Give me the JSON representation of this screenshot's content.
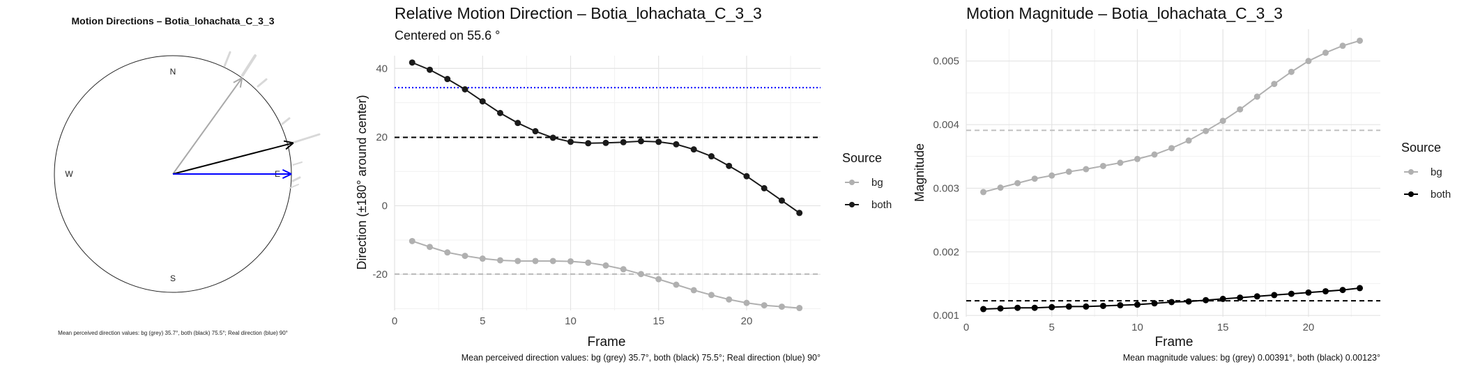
{
  "chart_data": [
    {
      "type": "polar",
      "title": "Motion Directions – Botia_lohachata_C_3_3",
      "compass": [
        "N",
        "W",
        "E",
        "S"
      ],
      "vectors": [
        {
          "name": "bg",
          "color": "#a9a9a9",
          "angle_deg": 35.7,
          "length": 1.0
        },
        {
          "name": "both",
          "color": "#000000",
          "angle_deg": 75.5,
          "length": 1.05
        },
        {
          "name": "real",
          "color": "#0000ff",
          "angle_deg": 90,
          "length": 1.0
        }
      ],
      "footnote": "Mean perceived direction values: bg (grey) 35.7°, both (black) 75.5°; Real direction (blue) 90°"
    },
    {
      "type": "line",
      "title": "Relative Motion Direction – Botia_lohachata_C_3_3",
      "subtitle": "Centered on  55.6 °",
      "xlabel": "Frame",
      "ylabel": "Direction (±180° around center)",
      "xlim": [
        0,
        24.2
      ],
      "ylim": [
        -30.5,
        43.7
      ],
      "xticks": [
        0,
        5,
        10,
        15,
        20
      ],
      "yticks": [
        -20,
        0,
        20,
        40
      ],
      "grid": true,
      "legend": {
        "title": "Source",
        "position": "right",
        "entries": [
          "bg",
          "both"
        ]
      },
      "x": [
        1,
        2,
        3,
        4,
        5,
        6,
        7,
        8,
        9,
        10,
        11,
        12,
        13,
        14,
        15,
        16,
        17,
        18,
        19,
        20,
        21,
        22,
        23
      ],
      "series": [
        {
          "name": "bg",
          "color": "#b0b0b0",
          "values": [
            -10.3,
            -12.0,
            -13.6,
            -14.6,
            -15.4,
            -15.9,
            -16.1,
            -16.1,
            -16.1,
            -16.2,
            -16.6,
            -17.4,
            -18.5,
            -19.9,
            -21.4,
            -23.0,
            -24.6,
            -26.0,
            -27.3,
            -28.3,
            -29.0,
            -29.4,
            -29.8
          ]
        },
        {
          "name": "both",
          "color": "#1a1a1a",
          "values": [
            41.7,
            39.6,
            36.9,
            33.9,
            30.4,
            27.0,
            24.1,
            21.7,
            19.8,
            18.6,
            18.2,
            18.3,
            18.5,
            18.8,
            18.6,
            17.9,
            16.4,
            14.4,
            11.6,
            8.6,
            5.1,
            1.5,
            -2.1
          ]
        }
      ],
      "hlines": [
        {
          "name": "bg-mean",
          "y": -19.9,
          "color": "#b8b8b8",
          "style": "dashed"
        },
        {
          "name": "both-mean",
          "y": 19.9,
          "color": "#000000",
          "style": "dashed"
        },
        {
          "name": "real",
          "y": 34.4,
          "color": "#0000ff",
          "style": "dotted"
        }
      ],
      "footnote": "Mean perceived direction values: bg (grey) 35.7°, both (black) 75.5°; Real direction (blue) 90°"
    },
    {
      "type": "line",
      "title": "Motion Magnitude – Botia_lohachata_C_3_3",
      "xlabel": "Frame",
      "ylabel": "Magnitude",
      "xlim": [
        0,
        24.2
      ],
      "ylim": [
        0.00098,
        0.0055
      ],
      "xticks": [
        0,
        5,
        10,
        15,
        20
      ],
      "yticks": [
        0.001,
        0.002,
        0.003,
        0.004,
        0.005
      ],
      "ytick_labels": [
        "0.001",
        "0.002",
        "0.003",
        "0.004",
        "0.005"
      ],
      "grid": true,
      "legend": {
        "title": "Source",
        "position": "right",
        "entries": [
          "bg",
          "both"
        ]
      },
      "x": [
        1,
        2,
        3,
        4,
        5,
        6,
        7,
        8,
        9,
        10,
        11,
        12,
        13,
        14,
        15,
        16,
        17,
        18,
        19,
        20,
        21,
        22,
        23
      ],
      "series": [
        {
          "name": "bg",
          "color": "#b0b0b0",
          "values": [
            0.00294,
            0.00301,
            0.00308,
            0.00315,
            0.0032,
            0.00326,
            0.0033,
            0.00335,
            0.0034,
            0.00346,
            0.00353,
            0.00363,
            0.00375,
            0.0039,
            0.00406,
            0.00424,
            0.00444,
            0.00464,
            0.00483,
            0.005,
            0.00513,
            0.00524,
            0.00532
          ]
        },
        {
          "name": "both",
          "color": "#000000",
          "values": [
            0.0011,
            0.00111,
            0.00112,
            0.00112,
            0.00113,
            0.00114,
            0.00114,
            0.00115,
            0.00116,
            0.00117,
            0.00119,
            0.00121,
            0.00122,
            0.00124,
            0.00126,
            0.00128,
            0.0013,
            0.00132,
            0.00134,
            0.00136,
            0.00138,
            0.0014,
            0.00143
          ]
        }
      ],
      "hlines": [
        {
          "name": "bg-mean",
          "y": 0.00391,
          "color": "#c0c0c0",
          "style": "dashed"
        },
        {
          "name": "both-mean",
          "y": 0.00123,
          "color": "#000000",
          "style": "dashed"
        }
      ],
      "footnote": "Mean magnitude values: bg (grey) 0.00391°, both (black) 0.00123°"
    }
  ]
}
